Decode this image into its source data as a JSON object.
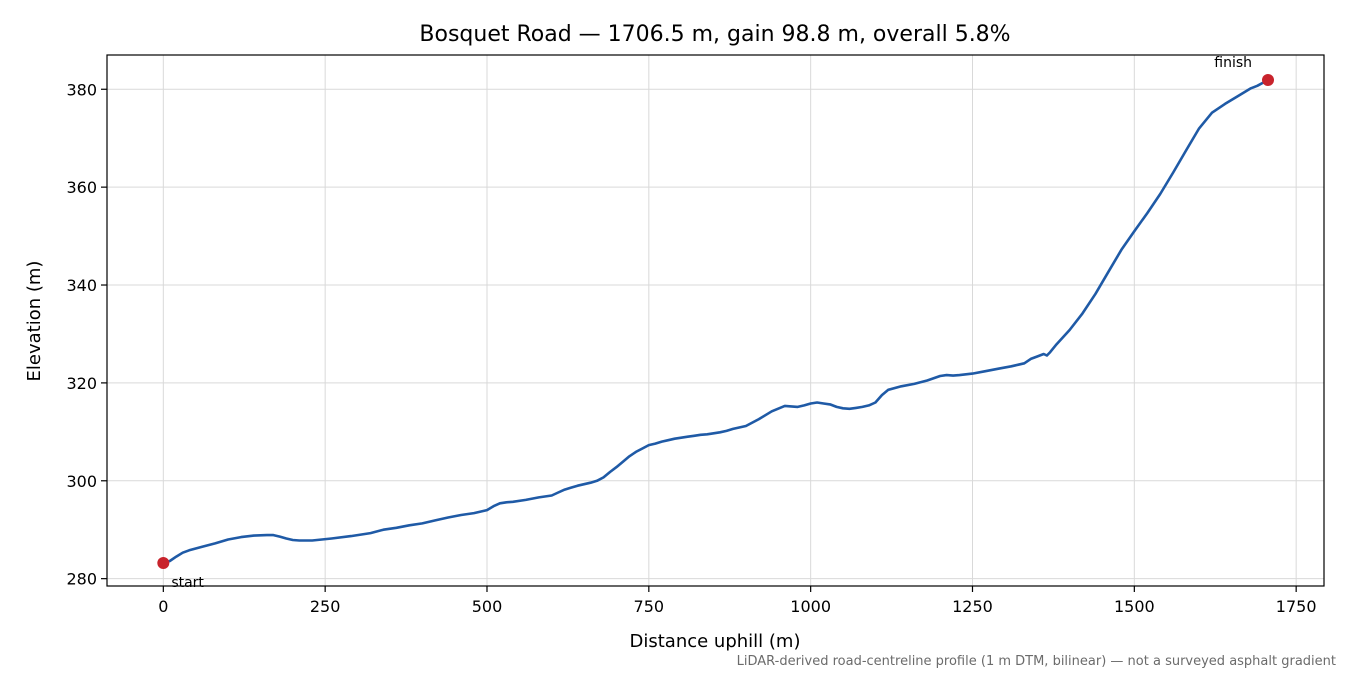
{
  "chart_data": {
    "type": "line",
    "title": "Bosquet Road — 1706.5 m, gain 98.8 m, overall 5.8%",
    "xlabel": "Distance uphill (m)",
    "ylabel": "Elevation (m)",
    "xlim": [
      -87,
      1793
    ],
    "ylim": [
      278.5,
      387
    ],
    "xticks": [
      0,
      250,
      500,
      750,
      1000,
      1250,
      1500,
      1750
    ],
    "yticks": [
      280,
      300,
      320,
      340,
      360,
      380
    ],
    "grid": true,
    "series": [
      {
        "color": "#1f5aa6",
        "x": [
          0,
          10,
          20,
          30,
          40,
          60,
          80,
          100,
          120,
          140,
          160,
          170,
          180,
          190,
          200,
          210,
          230,
          260,
          290,
          320,
          340,
          360,
          380,
          400,
          420,
          440,
          460,
          480,
          500,
          510,
          520,
          530,
          540,
          560,
          580,
          600,
          610,
          620,
          630,
          640,
          650,
          660,
          670,
          680,
          690,
          700,
          710,
          720,
          730,
          740,
          750,
          760,
          770,
          780,
          790,
          800,
          810,
          820,
          830,
          840,
          850,
          860,
          870,
          880,
          900,
          920,
          940,
          960,
          970,
          980,
          990,
          1000,
          1010,
          1020,
          1030,
          1040,
          1050,
          1060,
          1070,
          1080,
          1090,
          1100,
          1110,
          1120,
          1140,
          1160,
          1180,
          1200,
          1210,
          1220,
          1230,
          1250,
          1270,
          1290,
          1310,
          1320,
          1330,
          1340,
          1350,
          1360,
          1365,
          1370,
          1380,
          1400,
          1420,
          1440,
          1460,
          1480,
          1500,
          1520,
          1540,
          1560,
          1580,
          1600,
          1620,
          1640,
          1660,
          1680,
          1690,
          1706.5
        ],
        "y": [
          283.2,
          283.6,
          284.5,
          285.3,
          285.8,
          286.5,
          287.2,
          288.0,
          288.5,
          288.8,
          288.9,
          288.9,
          288.6,
          288.2,
          287.9,
          287.8,
          287.8,
          288.2,
          288.7,
          289.3,
          290.0,
          290.4,
          290.9,
          291.3,
          291.9,
          292.5,
          293.0,
          293.4,
          294.0,
          294.8,
          295.4,
          295.6,
          295.7,
          296.1,
          296.6,
          297.0,
          297.6,
          298.2,
          298.6,
          299.0,
          299.3,
          299.6,
          300.0,
          300.7,
          301.8,
          302.8,
          303.9,
          305.0,
          305.9,
          306.6,
          307.3,
          307.6,
          308.0,
          308.3,
          308.6,
          308.8,
          309.0,
          309.2,
          309.4,
          309.5,
          309.7,
          309.9,
          310.2,
          310.6,
          311.2,
          312.6,
          314.2,
          315.3,
          315.2,
          315.1,
          315.4,
          315.8,
          316.0,
          315.8,
          315.6,
          315.1,
          314.8,
          314.7,
          314.9,
          315.1,
          315.4,
          316.0,
          317.5,
          318.6,
          319.3,
          319.8,
          320.5,
          321.4,
          321.6,
          321.5,
          321.6,
          321.9,
          322.4,
          322.9,
          323.4,
          323.7,
          324.0,
          324.9,
          325.4,
          325.9,
          325.6,
          326.3,
          327.9,
          330.8,
          334.2,
          338.2,
          342.7,
          347.2,
          351.0,
          354.7,
          358.6,
          363.0,
          367.5,
          372.0,
          375.2,
          377.0,
          378.6,
          380.2,
          380.7,
          381.9
        ]
      }
    ],
    "points": [
      {
        "label": "start",
        "x": 0,
        "y": 283.2,
        "color": "#c8232c"
      },
      {
        "label": "finish",
        "x": 1706.5,
        "y": 381.9,
        "color": "#c8232c"
      }
    ],
    "footnote": "LiDAR-derived road-centreline profile (1 m DTM, bilinear) — not a surveyed asphalt gradient"
  }
}
